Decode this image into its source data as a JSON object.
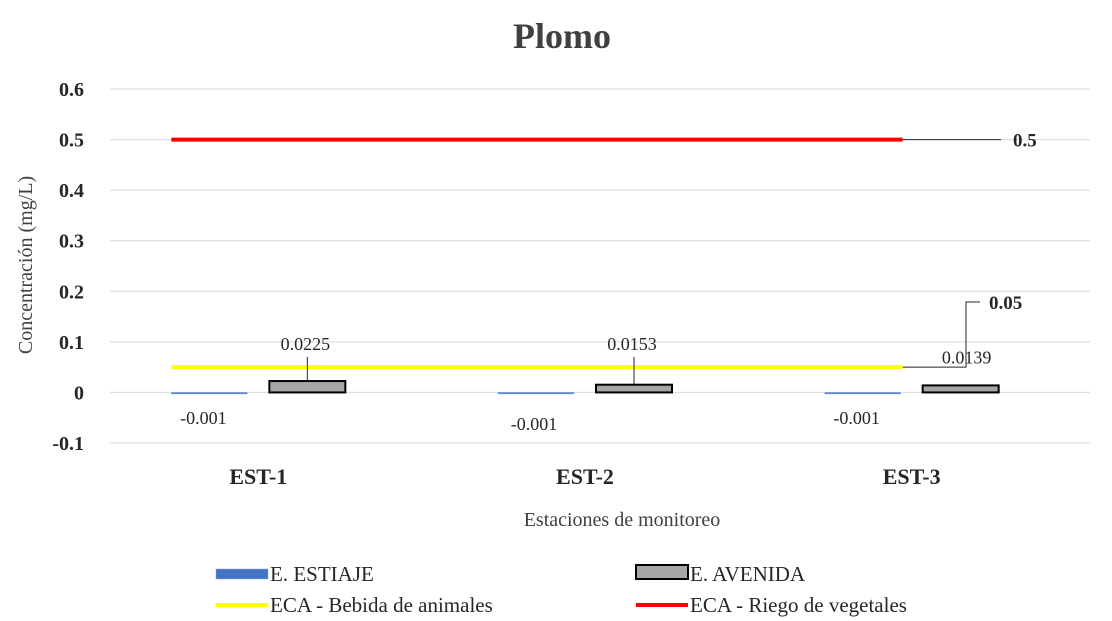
{
  "chart_data": {
    "type": "bar",
    "title": "Plomo",
    "xlabel": "Estaciones de monitoreo",
    "ylabel": "Concentración (mg/L)",
    "categories": [
      "EST-1",
      "EST-2",
      "EST-3"
    ],
    "ylim": [
      -0.1,
      0.6
    ],
    "yticks": [
      "-0.1",
      "0",
      "0.1",
      "0.2",
      "0.3",
      "0.4",
      "0.5",
      "0.6"
    ],
    "series": [
      {
        "name": "E. ESTIAJE",
        "color": "#4472C4",
        "values": [
          -0.001,
          -0.001,
          -0.001
        ],
        "labels": [
          "-0.001",
          "-0.001",
          "-0.001"
        ]
      },
      {
        "name": "E. AVENIDA",
        "color": "#A6A6A6",
        "values": [
          0.0225,
          0.0153,
          0.0139
        ],
        "labels": [
          "0.0225",
          "0.0153",
          "0.0139"
        ]
      }
    ],
    "reference_lines": [
      {
        "name": "ECA - Bebida de animales",
        "value": 0.05,
        "label": "0.05",
        "color": "#FFFF00"
      },
      {
        "name": "ECA - Riego de vegetales",
        "value": 0.5,
        "label": "0.5",
        "color": "#FF0000"
      }
    ],
    "grid": true,
    "legend_position": "bottom"
  }
}
